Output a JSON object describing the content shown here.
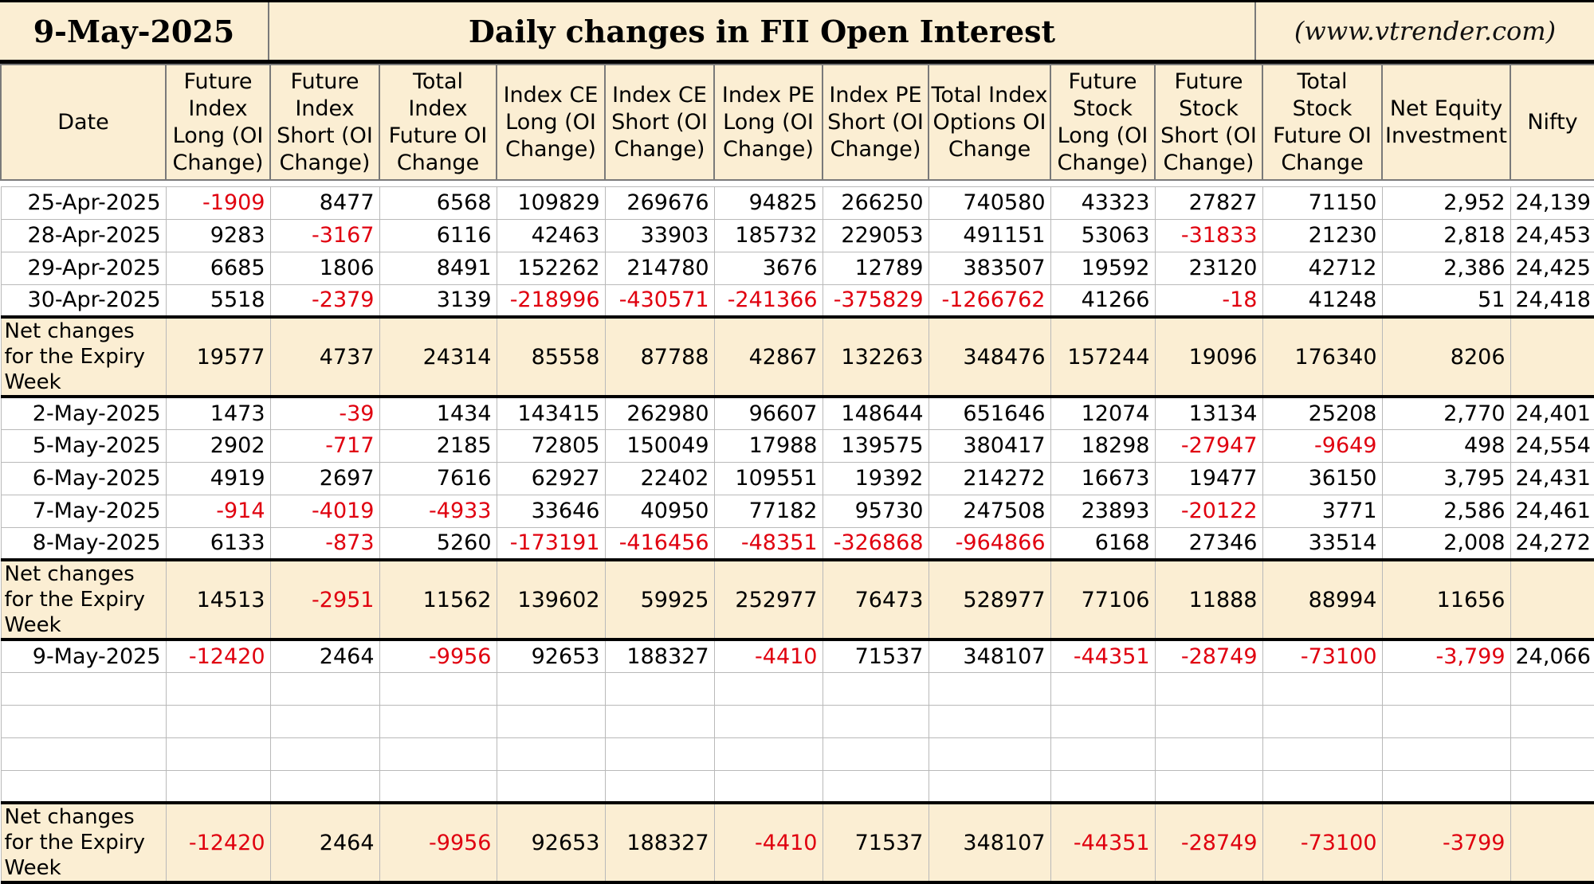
{
  "header": {
    "date": "9-May-2025",
    "title": "Daily changes in FII Open Interest",
    "website": "(www.vtrender.com)"
  },
  "columns": [
    "Date",
    "Future Index Long (OI Change)",
    "Future Index Short (OI Change)",
    "Total Index Future OI Change",
    "Index CE Long (OI Change)",
    "Index CE Short (OI Change)",
    "Index PE Long (OI Change)",
    "Index PE Short (OI Change)",
    "Total Index Options OI Change",
    "Future Stock Long (OI Change)",
    "Future Stock Short (OI Change)",
    "Total Stock Future OI Change",
    "Net Equity Investment",
    "Nifty"
  ],
  "net_label": "Net changes for the Expiry Week",
  "rows": [
    {
      "date": "25-Apr-2025",
      "cells": [
        "-1909",
        "8477",
        "6568",
        "109829",
        "269676",
        "94825",
        "266250",
        "740580",
        "43323",
        "27827",
        "71150",
        "2,952",
        "24,139"
      ]
    },
    {
      "date": "28-Apr-2025",
      "cells": [
        "9283",
        "-3167",
        "6116",
        "42463",
        "33903",
        "185732",
        "229053",
        "491151",
        "53063",
        "-31833",
        "21230",
        "2,818",
        "24,453"
      ]
    },
    {
      "date": "29-Apr-2025",
      "cells": [
        "6685",
        "1806",
        "8491",
        "152262",
        "214780",
        "3676",
        "12789",
        "383507",
        "19592",
        "23120",
        "42712",
        "2,386",
        "24,425"
      ]
    },
    {
      "date": "30-Apr-2025",
      "cells": [
        "5518",
        "-2379",
        "3139",
        "-218996",
        "-430571",
        "-241366",
        "-375829",
        "-1266762",
        "41266",
        "-18",
        "41248",
        "51",
        "24,418"
      ]
    },
    {
      "net": true,
      "cells": [
        "19577",
        "4737",
        "24314",
        "85558",
        "87788",
        "42867",
        "132263",
        "348476",
        "157244",
        "19096",
        "176340",
        "8206",
        ""
      ]
    },
    {
      "date": "2-May-2025",
      "cells": [
        "1473",
        "-39",
        "1434",
        "143415",
        "262980",
        "96607",
        "148644",
        "651646",
        "12074",
        "13134",
        "25208",
        "2,770",
        "24,401"
      ]
    },
    {
      "date": "5-May-2025",
      "cells": [
        "2902",
        "-717",
        "2185",
        "72805",
        "150049",
        "17988",
        "139575",
        "380417",
        "18298",
        "-27947",
        "-9649",
        "498",
        "24,554"
      ]
    },
    {
      "date": "6-May-2025",
      "cells": [
        "4919",
        "2697",
        "7616",
        "62927",
        "22402",
        "109551",
        "19392",
        "214272",
        "16673",
        "19477",
        "36150",
        "3,795",
        "24,431"
      ]
    },
    {
      "date": "7-May-2025",
      "cells": [
        "-914",
        "-4019",
        "-4933",
        "33646",
        "40950",
        "77182",
        "95730",
        "247508",
        "23893",
        "-20122",
        "3771",
        "2,586",
        "24,461"
      ]
    },
    {
      "date": "8-May-2025",
      "cells": [
        "6133",
        "-873",
        "5260",
        "-173191",
        "-416456",
        "-48351",
        "-326868",
        "-964866",
        "6168",
        "27346",
        "33514",
        "2,008",
        "24,272"
      ]
    },
    {
      "net": true,
      "cells": [
        "14513",
        "-2951",
        "11562",
        "139602",
        "59925",
        "252977",
        "76473",
        "528977",
        "77106",
        "11888",
        "88994",
        "11656",
        ""
      ]
    },
    {
      "date": "9-May-2025",
      "cells": [
        "-12420",
        "2464",
        "-9956",
        "92653",
        "188327",
        "-4410",
        "71537",
        "348107",
        "-44351",
        "-28749",
        "-73100",
        "-3,799",
        "24,066"
      ]
    },
    {
      "blank": true
    },
    {
      "blank": true
    },
    {
      "blank": true
    },
    {
      "blank": true
    },
    {
      "net": true,
      "cells": [
        "-12420",
        "2464",
        "-9956",
        "92653",
        "188327",
        "-4410",
        "71537",
        "348107",
        "-44351",
        "-28749",
        "-73100",
        "-3799",
        ""
      ]
    }
  ],
  "colors": {
    "header_bg": "#fbeed3",
    "negative": "#e0000f",
    "positive": "#000000"
  }
}
